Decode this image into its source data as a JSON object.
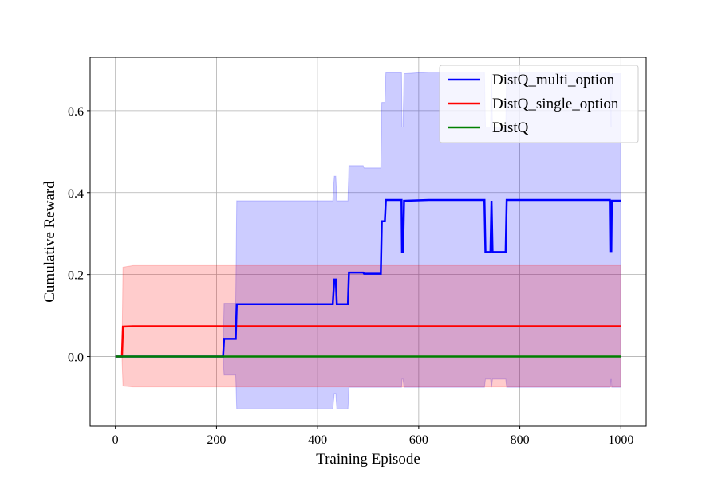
{
  "chart_data": {
    "type": "line",
    "title": "",
    "xlabel": "Training Episode",
    "ylabel": "Cumulative Reward",
    "xlim": [
      -50,
      1050
    ],
    "ylim": [
      -0.17,
      0.73
    ],
    "xticks": [
      0,
      200,
      400,
      600,
      800,
      1000
    ],
    "yticks": [
      0.0,
      0.2,
      0.4,
      0.6
    ],
    "xtick_labels": [
      "0",
      "200",
      "400",
      "600",
      "800",
      "1000"
    ],
    "ytick_labels": [
      "0.0",
      "0.2",
      "0.4",
      "0.6"
    ],
    "grid": true,
    "legend_position": "top-right",
    "series": [
      {
        "name": "DistQ_multi_option",
        "color": "#0000ff",
        "band_color": "#0000ff",
        "x": [
          0,
          213,
          215,
          238,
          240,
          430,
          433,
          436,
          438,
          460,
          462,
          490,
          492,
          525,
          527,
          533,
          535,
          566,
          567,
          569,
          571,
          620,
          730,
          732,
          742,
          744,
          746,
          772,
          774,
          978,
          979,
          980,
          981,
          982,
          983,
          1000
        ],
        "y": [
          0,
          0,
          0.043,
          0.043,
          0.128,
          0.128,
          0.188,
          0.188,
          0.128,
          0.128,
          0.205,
          0.205,
          0.202,
          0.202,
          0.33,
          0.33,
          0.382,
          0.382,
          0.255,
          0.255,
          0.38,
          0.382,
          0.382,
          0.255,
          0.255,
          0.38,
          0.255,
          0.255,
          0.382,
          0.382,
          0.255,
          0.38,
          0.255,
          0.38,
          0.38,
          0.38
        ],
        "lower": [
          0,
          0,
          -0.045,
          -0.045,
          -0.128,
          -0.128,
          -0.09,
          -0.09,
          -0.128,
          -0.128,
          -0.075,
          -0.075,
          -0.075,
          -0.075,
          -0.075,
          -0.075,
          -0.075,
          -0.075,
          -0.055,
          -0.055,
          -0.075,
          -0.075,
          -0.075,
          -0.055,
          -0.055,
          -0.075,
          -0.055,
          -0.055,
          -0.075,
          -0.075,
          -0.055,
          -0.075,
          -0.055,
          -0.075,
          -0.075,
          -0.075
        ],
        "upper": [
          0,
          0,
          0.13,
          0.13,
          0.38,
          0.38,
          0.44,
          0.44,
          0.38,
          0.38,
          0.466,
          0.466,
          0.46,
          0.46,
          0.62,
          0.62,
          0.692,
          0.692,
          0.56,
          0.56,
          0.69,
          0.694,
          0.694,
          0.56,
          0.56,
          0.69,
          0.56,
          0.56,
          0.694,
          0.694,
          0.56,
          0.69,
          0.56,
          0.69,
          0.69,
          0.69
        ]
      },
      {
        "name": "DistQ_single_option",
        "color": "#ff0000",
        "band_color": "#ff0000",
        "x": [
          0,
          13,
          15,
          35,
          1000
        ],
        "y": [
          0,
          0,
          0.073,
          0.074,
          0.074
        ],
        "lower": [
          0,
          0,
          -0.072,
          -0.074,
          -0.074
        ],
        "upper": [
          0,
          0,
          0.218,
          0.222,
          0.222
        ]
      },
      {
        "name": "DistQ",
        "color": "#008000",
        "band_color": "#008000",
        "x": [
          0,
          1000
        ],
        "y": [
          0,
          0
        ],
        "lower": [
          0,
          0
        ],
        "upper": [
          0,
          0
        ]
      }
    ]
  }
}
